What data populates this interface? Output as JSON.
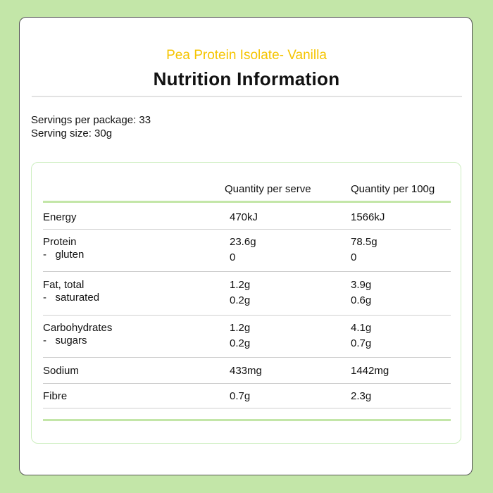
{
  "colors": {
    "background": "#c3e6a8",
    "accent": "#f5c400",
    "table_border": "#cdeec0"
  },
  "header": {
    "product": "Pea Protein Isolate- Vanilla",
    "title": "Nutrition Information"
  },
  "servings": {
    "per_package": "Servings per package: 33",
    "size": "Serving size: 30g"
  },
  "table": {
    "columns": [
      "",
      "Quantity per serve",
      "Quantity per 100g"
    ],
    "rows": [
      {
        "label": "Energy",
        "per_serve": "470kJ",
        "per_100g": "1566kJ"
      },
      {
        "label": "Protein",
        "per_serve": "23.6g",
        "per_100g": "78.5g",
        "sub_label": "-   gluten",
        "sub_per_serve": "0",
        "sub_per_100g": "0"
      },
      {
        "label": "Fat, total",
        "per_serve": "1.2g",
        "per_100g": "3.9g",
        "sub_label": "-   saturated",
        "sub_per_serve": "0.2g",
        "sub_per_100g": "0.6g"
      },
      {
        "label": "Carbohydrates",
        "per_serve": "1.2g",
        "per_100g": "4.1g",
        "sub_label": "-   sugars",
        "sub_per_serve": "0.2g",
        "sub_per_100g": "0.7g"
      },
      {
        "label": "Sodium",
        "per_serve": "433mg",
        "per_100g": "1442mg"
      },
      {
        "label": "Fibre",
        "per_serve": "0.7g",
        "per_100g": "2.3g"
      }
    ]
  }
}
